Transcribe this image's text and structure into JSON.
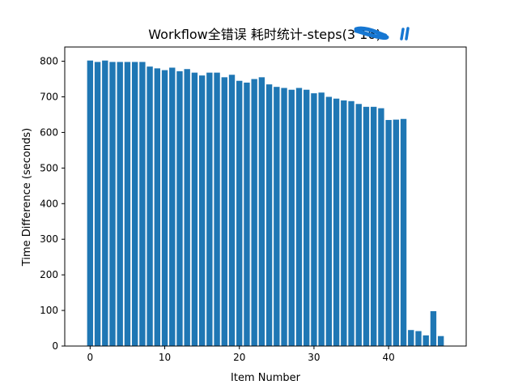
{
  "chart_data": {
    "type": "bar",
    "title": "Workflow全错误 耗时统计-steps(3 16)",
    "xlabel": "Item Number",
    "ylabel": "Time Difference (seconds)",
    "x": [
      0,
      1,
      2,
      3,
      4,
      5,
      6,
      7,
      8,
      9,
      10,
      11,
      12,
      13,
      14,
      15,
      16,
      17,
      18,
      19,
      20,
      21,
      22,
      23,
      24,
      25,
      26,
      27,
      28,
      29,
      30,
      31,
      32,
      33,
      34,
      35,
      36,
      37,
      38,
      39,
      40,
      41,
      42,
      43,
      44,
      45,
      46,
      47
    ],
    "values": [
      802,
      798,
      802,
      798,
      798,
      798,
      798,
      798,
      785,
      780,
      775,
      782,
      772,
      778,
      768,
      760,
      768,
      768,
      755,
      762,
      745,
      740,
      750,
      755,
      735,
      728,
      725,
      720,
      725,
      720,
      710,
      712,
      700,
      695,
      690,
      688,
      680,
      672,
      672,
      668,
      635,
      636,
      638,
      45,
      42,
      30,
      98,
      28
    ],
    "xlim": [
      -3.4,
      50.4
    ],
    "ylim": [
      0,
      840
    ],
    "xticks": [
      0,
      10,
      20,
      30,
      40
    ],
    "yticks": [
      0,
      100,
      200,
      300,
      400,
      500,
      600,
      700,
      800
    ],
    "bar_color": "#1f77b4",
    "grid": false,
    "legend": "none"
  },
  "annotation": {
    "color": "#1677d2"
  }
}
